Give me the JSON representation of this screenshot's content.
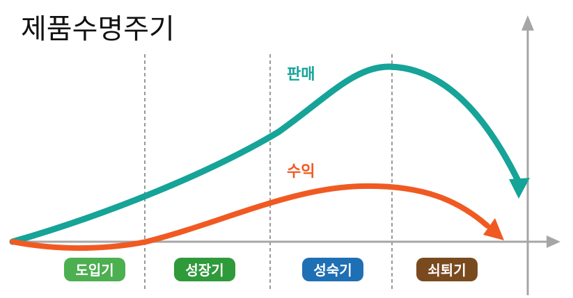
{
  "title": "제품수명주기",
  "curves": {
    "sales": {
      "label": "판매",
      "color": "#16a398"
    },
    "profit": {
      "label": "수익",
      "color": "#f05a22"
    }
  },
  "axis_color": "#a6a6a6",
  "stages": [
    {
      "label": "도입기",
      "color": "#4caf50"
    },
    {
      "label": "성장기",
      "color": "#2f9a3a"
    },
    {
      "label": "성숙기",
      "color": "#1f6fb5"
    },
    {
      "label": "쇠퇴기",
      "color": "#7a4a1f"
    }
  ]
}
